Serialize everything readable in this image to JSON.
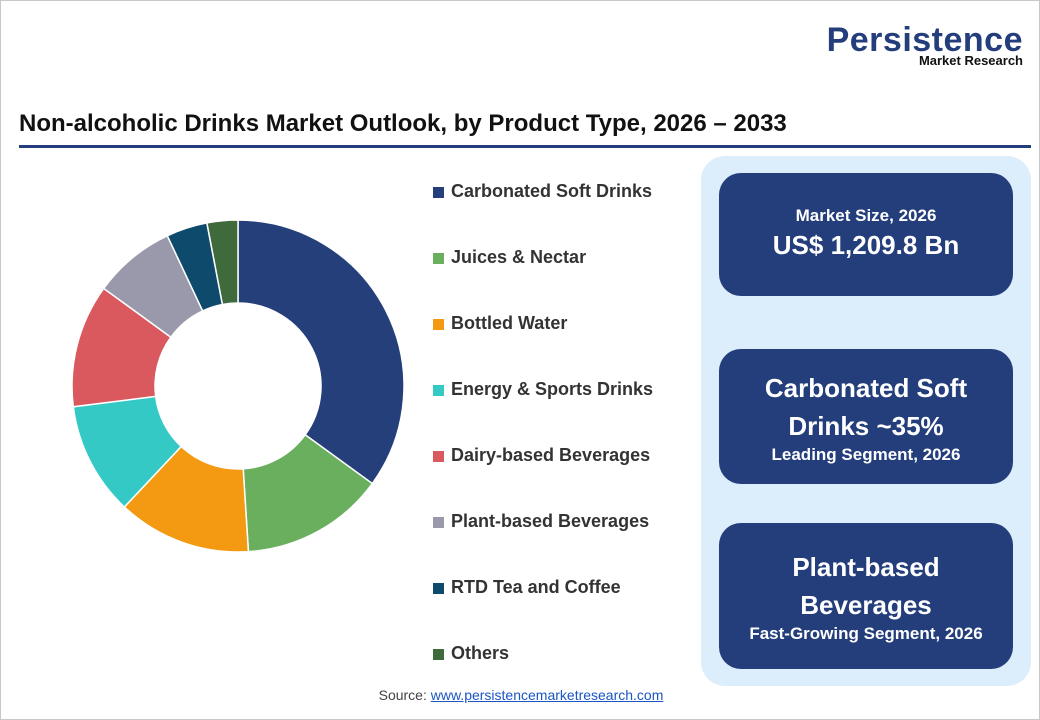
{
  "logo": {
    "name": "Persistence",
    "tagline": "Market Research"
  },
  "chart_data": {
    "type": "donut",
    "title": "Non-alcoholic Drinks Market Outlook, by Product Type, 2026 – 2033",
    "categories": [
      "Carbonated Soft Drinks",
      "Juices & Nectar",
      "Bottled Water",
      "Energy & Sports Drinks",
      "Dairy-based Beverages",
      "Plant-based Beverages",
      "RTD Tea and Coffee",
      "Others"
    ],
    "values": [
      35,
      14,
      13,
      11,
      12,
      8,
      4,
      3
    ],
    "colors": [
      "#243f7a",
      "#6aaf5e",
      "#f39a12",
      "#34c9c5",
      "#d9595f",
      "#9a98ab",
      "#0e4a6b",
      "#3f6b3c"
    ],
    "legend": "right"
  },
  "cards": [
    {
      "label": "Market Size, 2026",
      "value": "US$ 1,209.8 Bn"
    },
    {
      "value": "Carbonated Soft Drinks ~35%",
      "label": "Leading Segment, 2026"
    },
    {
      "value": "Plant-based Beverages",
      "label": "Fast-Growing Segment, 2026"
    }
  ],
  "source": {
    "label": "Source:",
    "url": "www.persistencemarketresearch.com"
  }
}
